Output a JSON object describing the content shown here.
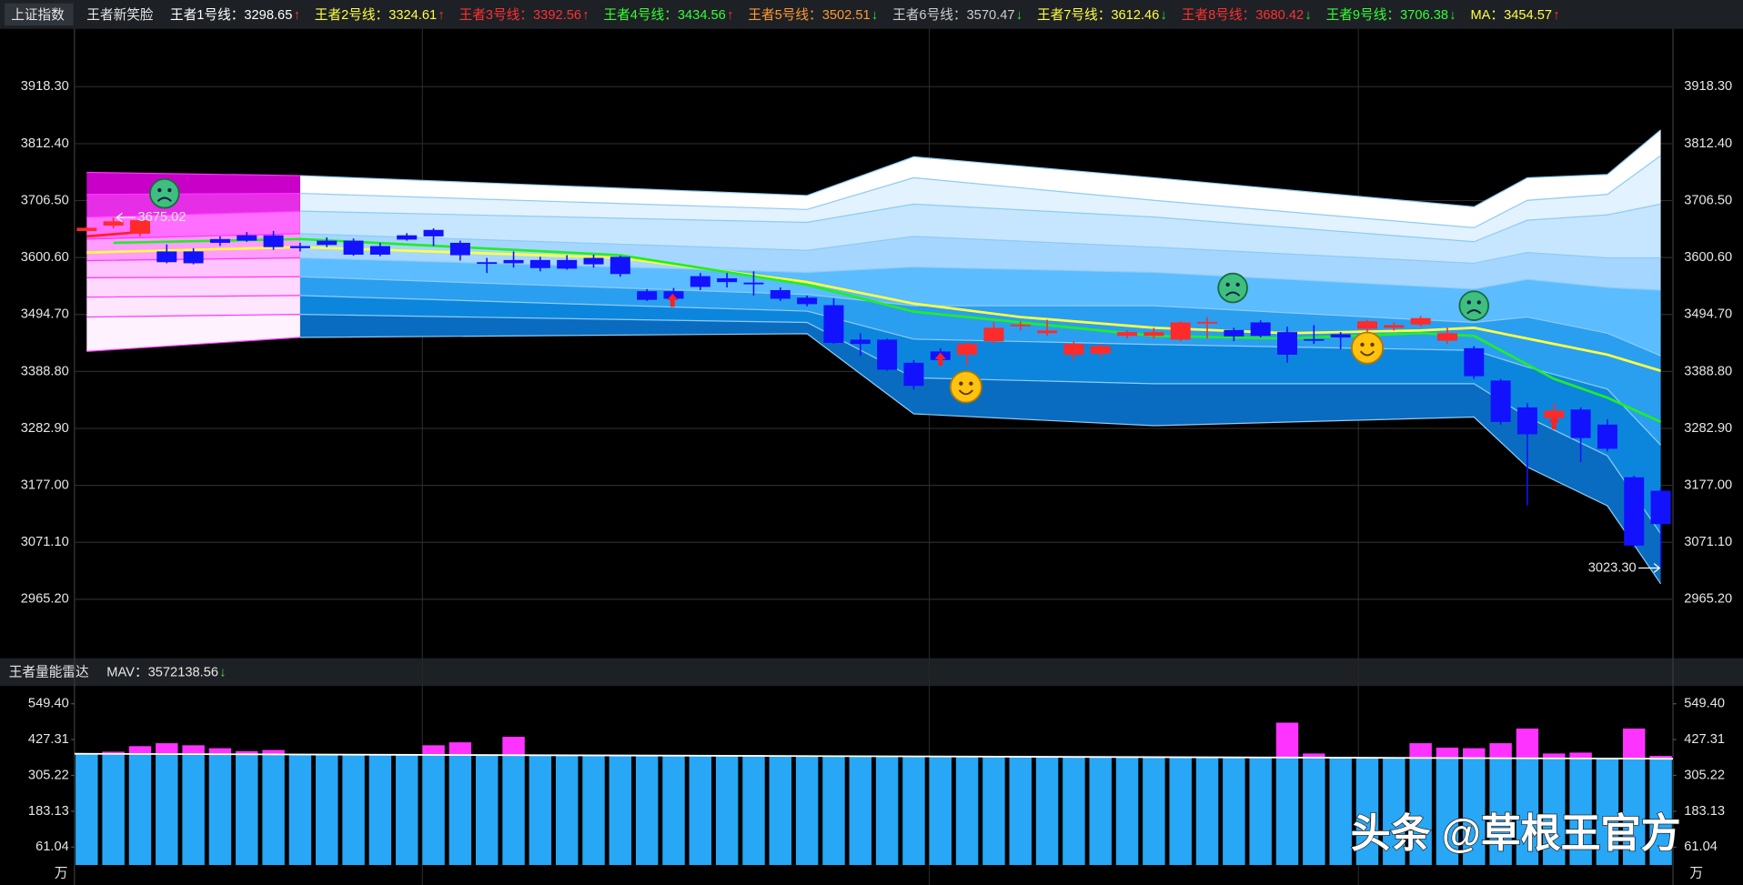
{
  "header": {
    "index_name": "上证指数",
    "indicator": "王者新笑脸",
    "items": [
      {
        "text": "王者1号线：3298.65",
        "arrow": "↑",
        "color": "#ffffff",
        "arrow_color": "#ff3b3b"
      },
      {
        "text": "王者2号线：3324.61",
        "arrow": "↑",
        "color": "#ffff40",
        "arrow_color": "#ff3b3b"
      },
      {
        "text": "王者3号线：3392.56",
        "arrow": "↑",
        "color": "#ff3030",
        "arrow_color": "#ff3b3b"
      },
      {
        "text": "王者4号线：3434.56",
        "arrow": "↑",
        "color": "#33ff33",
        "arrow_color": "#ff3b3b"
      },
      {
        "text": "王者5号线：3502.51",
        "arrow": "↓",
        "color": "#ff9a30",
        "arrow_color": "#2ee62e"
      },
      {
        "text": "王者6号线：3570.47",
        "arrow": "↓",
        "color": "#cfcfcf",
        "arrow_color": "#2ee62e"
      },
      {
        "text": "王者7号线：3612.46",
        "arrow": "↓",
        "color": "#ffff40",
        "arrow_color": "#2ee62e"
      },
      {
        "text": "王者8号线：3680.42",
        "arrow": "↓",
        "color": "#ff3030",
        "arrow_color": "#2ee62e"
      },
      {
        "text": "王者9号线：3706.38",
        "arrow": "↓",
        "color": "#33ff33",
        "arrow_color": "#2ee62e"
      },
      {
        "text": "MA：3454.57",
        "arrow": "↑",
        "color": "#ffff40",
        "arrow_color": "#ff3b3b"
      }
    ]
  },
  "watermark": "头条 @草根王官方",
  "chart_data": [
    {
      "type": "candlestick",
      "categories": [
        null,
        null,
        null,
        null,
        null,
        null,
        null,
        null,
        null,
        null,
        null,
        null,
        null,
        null,
        null,
        null,
        null,
        null,
        null,
        null,
        null,
        null,
        null,
        null,
        null,
        null,
        null,
        null,
        null,
        null,
        null,
        null,
        null,
        null,
        null,
        null,
        null,
        null,
        null,
        null,
        null,
        null,
        null,
        null,
        null,
        null,
        null,
        null,
        null,
        null,
        null,
        null,
        null,
        null,
        null,
        null,
        null,
        null,
        null,
        null
      ],
      "ylim": [
        2857.7,
        4023.7
      ],
      "yticks": [
        {
          "value": 2965.2,
          "label": "2965.20"
        },
        {
          "value": 3071.1,
          "label": "3071.10"
        },
        {
          "value": 3177,
          "label": "3177.00"
        },
        {
          "value": 3282.9,
          "label": "3282.90"
        },
        {
          "value": 3388.8,
          "label": "3388.80"
        },
        {
          "value": 3494.7,
          "label": "3494.70"
        },
        {
          "value": 3600.6,
          "label": "3600.60"
        },
        {
          "value": 3706.5,
          "label": "3706.50"
        },
        {
          "value": 3812.4,
          "label": "3812.40"
        },
        {
          "value": 3918.3,
          "label": "3918.30"
        }
      ],
      "grid_color": "#2b2b2b",
      "up_color": "#ff2a2a",
      "down_color": "#1212ff",
      "open": [
        3650,
        3660,
        3645,
        3612,
        3612,
        3635,
        3642,
        3642,
        3622,
        3632,
        3632,
        3622,
        3642,
        3652,
        3628,
        3592,
        3596,
        3596,
        3596,
        3600,
        3602,
        3538,
        3538,
        3566,
        3562,
        3554,
        3540,
        3526,
        3512,
        3448,
        3448,
        3405,
        3426,
        3420,
        3445,
        3474,
        3460,
        3420,
        3422,
        3455,
        3455,
        3448,
        3479,
        3466,
        3480,
        3462,
        3449,
        3458,
        3468,
        3470,
        3476,
        3446,
        3432,
        3372,
        3322,
        3302,
        3318,
        3290,
        3192,
        3167
      ],
      "high": [
        3658,
        3675.02,
        3672,
        3625,
        3618,
        3640,
        3648,
        3650,
        3628,
        3638,
        3636,
        3628,
        3646,
        3655,
        3632,
        3600,
        3612,
        3602,
        3605,
        3606,
        3604,
        3542,
        3544,
        3572,
        3572,
        3575,
        3545,
        3530,
        3525,
        3460,
        3450,
        3410,
        3432,
        3445,
        3480,
        3482,
        3485,
        3445,
        3440,
        3465,
        3470,
        3482,
        3490,
        3470,
        3484,
        3472,
        3475,
        3462,
        3485,
        3480,
        3492,
        3470,
        3436,
        3375,
        3330,
        3330,
        3322,
        3300,
        3195,
        3172
      ],
      "low": [
        3648,
        3655,
        3640,
        3590,
        3588,
        3622,
        3630,
        3615,
        3612,
        3620,
        3604,
        3603,
        3632,
        3622,
        3595,
        3572,
        3582,
        3575,
        3578,
        3582,
        3565,
        3520,
        3518,
        3540,
        3545,
        3530,
        3520,
        3510,
        3440,
        3418,
        3390,
        3355,
        3400,
        3400,
        3440,
        3465,
        3455,
        3410,
        3415,
        3450,
        3450,
        3445,
        3450,
        3445,
        3452,
        3405,
        3440,
        3430,
        3462,
        3465,
        3472,
        3440,
        3375,
        3290,
        3140,
        3295,
        3220,
        3240,
        3060,
        3023.3
      ],
      "close": [
        3656,
        3668,
        3670,
        3592,
        3590,
        3628,
        3632,
        3620,
        3618,
        3624,
        3606,
        3606,
        3634,
        3640,
        3605,
        3589,
        3590,
        3581,
        3580,
        3588,
        3570,
        3522,
        3524,
        3546,
        3555,
        3551,
        3524,
        3514,
        3442,
        3440,
        3392,
        3362,
        3410,
        3440,
        3470,
        3476,
        3465,
        3440,
        3436,
        3462,
        3462,
        3480,
        3481,
        3454,
        3455,
        3420,
        3446,
        3452,
        3482,
        3475,
        3488,
        3460,
        3380,
        3295,
        3272,
        3316,
        3265,
        3245,
        3065,
        3105
      ],
      "bands": {
        "x": [
          0,
          8,
          27,
          31,
          40,
          52,
          54,
          57,
          59
        ],
        "lines": [
          [
            3759,
            3753,
            3716,
            3788,
            3749,
            3695,
            3749,
            3755,
            3838
          ],
          [
            3718,
            3720,
            3690,
            3749,
            3707,
            3656,
            3707,
            3718,
            3790
          ],
          [
            3676,
            3687,
            3666,
            3700,
            3676,
            3630,
            3670,
            3680,
            3700
          ],
          [
            3635,
            3645,
            3614,
            3640,
            3620,
            3590,
            3610,
            3600,
            3600
          ],
          [
            3595,
            3600,
            3573,
            3583,
            3573,
            3542,
            3560,
            3545,
            3540
          ],
          [
            3563,
            3565,
            3532,
            3511,
            3511,
            3480,
            3490,
            3460,
            3418
          ],
          [
            3527,
            3530,
            3501,
            3449,
            3439,
            3428,
            3397,
            3356,
            3252
          ],
          [
            3490,
            3495,
            3480,
            3377,
            3366,
            3366,
            3304,
            3232,
            3087
          ],
          [
            3426,
            3452,
            3459,
            3310,
            3288,
            3304,
            3211,
            3139,
            2994
          ]
        ],
        "fills": [
          "#ffffff",
          "#e3f2ff",
          "#c6e6ff",
          "#a5d6ff",
          "#5bbcff",
          "#2a9ff0",
          "#0c86dc",
          "#0a6cc0"
        ],
        "highlight_fills": [
          "#c800c8",
          "#e62ee6",
          "#ff6eff",
          "#ff9dff",
          "#ffc4ff",
          "#ffd8ff",
          "#ffe6ff",
          "#fff2ff"
        ],
        "highlight_x": [
          0,
          8
        ],
        "line_color": "#8ecbf2",
        "highlight_line_color": "#ff33ff"
      },
      "series": [
        {
          "color": "#ffff40",
          "x": [
            0,
            8,
            20,
            27,
            31,
            35,
            40,
            45,
            50,
            52,
            55,
            57,
            59
          ],
          "values": [
            3610,
            3620,
            3600,
            3555,
            3515,
            3490,
            3470,
            3460,
            3465,
            3470,
            3440,
            3420,
            3390
          ]
        },
        {
          "color": "#22ee22",
          "x": [
            1,
            8,
            20,
            27,
            31,
            35,
            40,
            45,
            50,
            52,
            55,
            57,
            59
          ],
          "values": [
            3628,
            3635,
            3605,
            3550,
            3500,
            3480,
            3455,
            3450,
            3460,
            3455,
            3375,
            3340,
            3295
          ]
        },
        {
          "color": "#ff2020",
          "x": [
            0,
            2
          ],
          "values": [
            3640,
            3648
          ]
        }
      ],
      "annotations": [
        3675.02,
        {
          "value": 3023.3,
          "label": "3023.30"
        }
      ]
    },
    {
      "type": "bar",
      "title": "王者量能雷达",
      "mav_text": "MAV：3572138.56",
      "mav_arrow": "↓",
      "mav_arrow_color": "#2ee62e",
      "unit": "万",
      "categories": [
        null,
        null,
        null,
        null,
        null,
        null,
        null,
        null,
        null,
        null,
        null,
        null,
        null,
        null,
        null,
        null,
        null,
        null,
        null,
        null,
        null,
        null,
        null,
        null,
        null,
        null,
        null,
        null,
        null,
        null,
        null,
        null,
        null,
        null,
        null,
        null,
        null,
        null,
        null,
        null,
        null,
        null,
        null,
        null,
        null,
        null,
        null,
        null,
        null,
        null,
        null,
        null,
        null,
        null,
        null,
        null,
        null,
        null,
        null,
        null
      ],
      "ylim": [
        0,
        606.2
      ],
      "yticks": [
        61.04,
        183.13,
        305.22,
        427.31,
        {
          "value": 549.4,
          "label": "549.40"
        }
      ],
      "values": [
        379,
        386,
        405,
        415,
        408,
        398,
        388,
        392,
        378,
        377,
        376,
        376,
        375,
        408,
        418,
        375,
        437,
        374,
        374,
        373,
        373,
        373,
        372,
        372,
        372,
        375,
        371,
        371,
        370,
        370,
        370,
        370,
        370,
        369,
        369,
        369,
        368,
        368,
        367,
        367,
        367,
        367,
        366,
        366,
        366,
        485,
        380,
        365,
        365,
        365,
        415,
        400,
        398,
        415,
        465,
        380,
        383,
        363,
        465,
        372
      ],
      "color": "#27a7f5",
      "over_color": "#ff33ff",
      "ma": {
        "x": [
          0,
          59
        ],
        "values": [
          379,
          362
        ],
        "color": "#ffffff"
      }
    }
  ]
}
